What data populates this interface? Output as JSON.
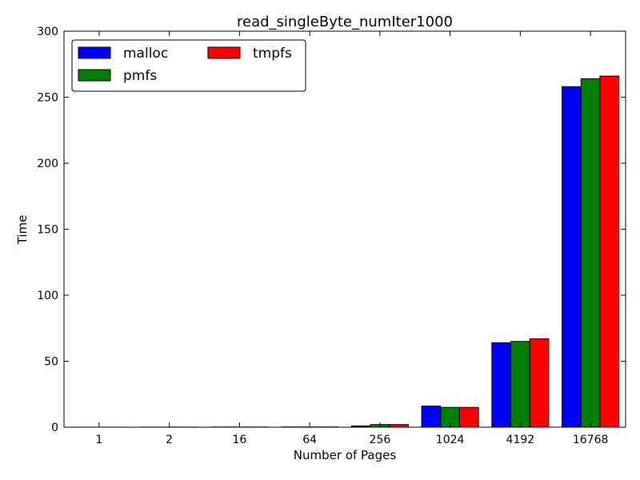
{
  "chart_data": {
    "type": "bar",
    "title": "read_singleByte_numIter1000",
    "xlabel": "Number of Pages",
    "ylabel": "Time",
    "categories": [
      "1",
      "2",
      "16",
      "64",
      "256",
      "1024",
      "4192",
      "16768"
    ],
    "ylim": [
      0,
      300
    ],
    "yticks": [
      "0",
      "50",
      "100",
      "150",
      "200",
      "250",
      "300"
    ],
    "grid": false,
    "legend_position": "top-left",
    "legend_columns": 2,
    "series": [
      {
        "name": "malloc",
        "color": "#0000ff",
        "values": [
          0.05,
          0.1,
          0.15,
          0.2,
          1,
          16,
          64,
          258
        ]
      },
      {
        "name": "pmfs",
        "color": "#008000",
        "values": [
          0.05,
          0.1,
          0.15,
          0.2,
          2,
          15,
          65,
          264
        ]
      },
      {
        "name": "tmpfs",
        "color": "#ff0000",
        "values": [
          0.05,
          0.1,
          0.15,
          0.2,
          2,
          15,
          67,
          266
        ]
      }
    ]
  }
}
